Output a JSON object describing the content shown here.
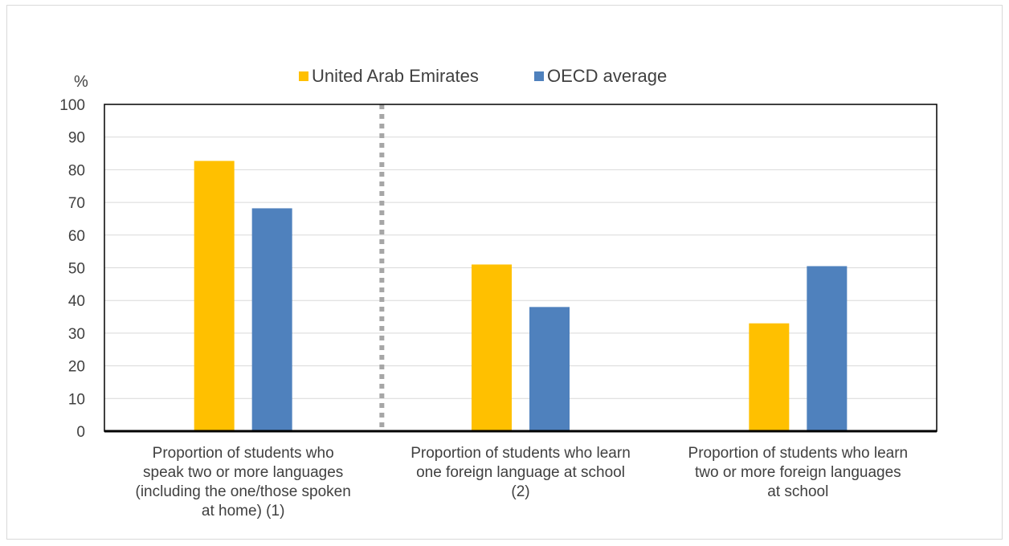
{
  "chart_data": {
    "type": "bar",
    "ylabel": "%",
    "ylim": [
      0,
      100
    ],
    "yticks": [
      0,
      10,
      20,
      30,
      40,
      50,
      60,
      70,
      80,
      90,
      100
    ],
    "grid": true,
    "legend_position": "top-center",
    "categories": [
      [
        "Proportion of students who",
        "speak two or more languages",
        "(including the one/those spoken",
        "at home) (1)"
      ],
      [
        "Proportion of students who learn",
        "one foreign language at school",
        "(2)"
      ],
      [
        "Proportion of students who learn",
        "two or more foreign languages",
        "at school"
      ]
    ],
    "series": [
      {
        "name": "United Arab Emirates",
        "color": "#FFC000",
        "values": [
          82.7,
          51.0,
          33.0
        ]
      },
      {
        "name": "OECD average",
        "color": "#4F81BD",
        "values": [
          68.2,
          38.0,
          50.5
        ]
      }
    ],
    "separator_after_category": 0
  }
}
